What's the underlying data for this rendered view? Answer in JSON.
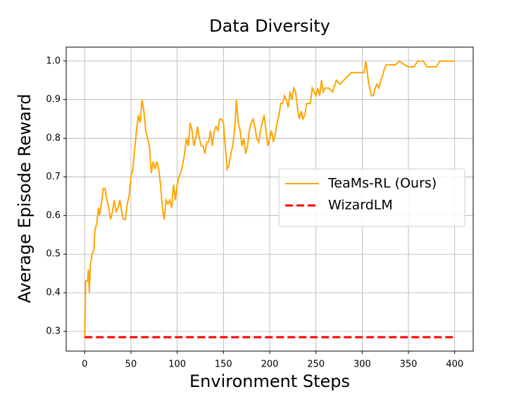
{
  "chart_data": {
    "type": "line",
    "title": "Data Diversity",
    "xlabel": "Environment Steps",
    "ylabel": "Average Episode Reward",
    "xlim": [
      -20,
      420
    ],
    "xticks": [
      0,
      50,
      100,
      150,
      200,
      250,
      300,
      350,
      400
    ],
    "ylim": [
      0.249,
      1.036
    ],
    "yticks": [
      {
        "value": 0.3,
        "label": "0.3"
      },
      {
        "value": 0.4,
        "label": "0.4"
      },
      {
        "value": 0.5,
        "label": "0.5"
      },
      {
        "value": 0.6,
        "label": "0.6"
      },
      {
        "value": 0.7,
        "label": "0.7"
      },
      {
        "value": 0.8,
        "label": "0.8"
      },
      {
        "value": 0.9,
        "label": "0.9"
      },
      {
        "value": 1.0,
        "label": "1.0"
      }
    ],
    "grid": true,
    "legend": "center right",
    "series": [
      {
        "name": "TeaMs-RL (Ours)",
        "color": "#ffa500",
        "dash": "solid",
        "x": [
          0,
          1,
          3,
          4,
          5,
          6,
          8,
          10,
          11,
          13,
          15,
          16,
          18,
          20,
          22,
          24,
          26,
          28,
          30,
          32,
          34,
          36,
          38,
          40,
          42,
          44,
          46,
          48,
          50,
          52,
          54,
          56,
          58,
          60,
          62,
          64,
          66,
          68,
          70,
          72,
          74,
          76,
          78,
          80,
          82,
          84,
          86,
          88,
          90,
          92,
          94,
          96,
          98,
          100,
          102,
          105,
          108,
          110,
          112,
          114,
          116,
          118,
          120,
          122,
          124,
          126,
          128,
          130,
          132,
          134,
          136,
          138,
          140,
          142,
          144,
          146,
          148,
          150,
          152,
          154,
          156,
          158,
          160,
          162,
          164,
          166,
          168,
          170,
          172,
          174,
          176,
          178,
          180,
          182,
          184,
          186,
          188,
          190,
          192,
          194,
          196,
          198,
          200,
          202,
          204,
          206,
          208,
          210,
          212,
          214,
          216,
          218,
          220,
          222,
          224,
          226,
          228,
          230,
          232,
          234,
          236,
          238,
          240,
          244,
          246,
          248,
          250,
          252,
          254,
          256,
          258,
          260,
          264,
          268,
          272,
          276,
          280,
          284,
          288,
          292,
          296,
          300,
          302,
          304,
          306,
          308,
          310,
          312,
          314,
          316,
          318,
          320,
          322,
          324,
          326,
          330,
          336,
          340,
          346,
          350,
          356,
          360,
          366,
          370,
          380,
          384,
          400
        ],
        "values": [
          0.285,
          0.43,
          0.43,
          0.46,
          0.4,
          0.47,
          0.5,
          0.51,
          0.56,
          0.58,
          0.62,
          0.6,
          0.63,
          0.67,
          0.67,
          0.64,
          0.62,
          0.59,
          0.61,
          0.64,
          0.61,
          0.62,
          0.64,
          0.61,
          0.59,
          0.59,
          0.63,
          0.65,
          0.7,
          0.72,
          0.77,
          0.82,
          0.86,
          0.84,
          0.9,
          0.87,
          0.82,
          0.8,
          0.78,
          0.71,
          0.74,
          0.72,
          0.74,
          0.72,
          0.68,
          0.62,
          0.59,
          0.64,
          0.63,
          0.64,
          0.62,
          0.68,
          0.64,
          0.68,
          0.7,
          0.72,
          0.76,
          0.8,
          0.78,
          0.84,
          0.82,
          0.78,
          0.8,
          0.83,
          0.8,
          0.78,
          0.78,
          0.76,
          0.79,
          0.79,
          0.82,
          0.78,
          0.82,
          0.83,
          0.82,
          0.85,
          0.85,
          0.84,
          0.78,
          0.72,
          0.73,
          0.76,
          0.78,
          0.82,
          0.9,
          0.84,
          0.82,
          0.78,
          0.8,
          0.76,
          0.78,
          0.82,
          0.84,
          0.85,
          0.83,
          0.8,
          0.79,
          0.82,
          0.84,
          0.86,
          0.82,
          0.78,
          0.8,
          0.82,
          0.79,
          0.81,
          0.84,
          0.86,
          0.89,
          0.89,
          0.91,
          0.9,
          0.88,
          0.92,
          0.9,
          0.93,
          0.92,
          0.88,
          0.85,
          0.87,
          0.85,
          0.86,
          0.89,
          0.89,
          0.93,
          0.92,
          0.91,
          0.93,
          0.91,
          0.95,
          0.92,
          0.93,
          0.93,
          0.92,
          0.95,
          0.94,
          0.95,
          0.96,
          0.97,
          0.97,
          0.97,
          0.97,
          0.97,
          1.0,
          0.96,
          0.93,
          0.91,
          0.91,
          0.93,
          0.94,
          0.93,
          0.95,
          0.96,
          0.98,
          0.99,
          0.99,
          0.99,
          1.0,
          0.99,
          0.985,
          0.985,
          1.0,
          1.0,
          0.985,
          0.985,
          1.0,
          1.0
        ]
      },
      {
        "name": "WizardLM",
        "color": "#ff0000",
        "dash": "dashed",
        "x": [
          0,
          400
        ],
        "values": [
          0.285,
          0.285
        ]
      }
    ]
  }
}
